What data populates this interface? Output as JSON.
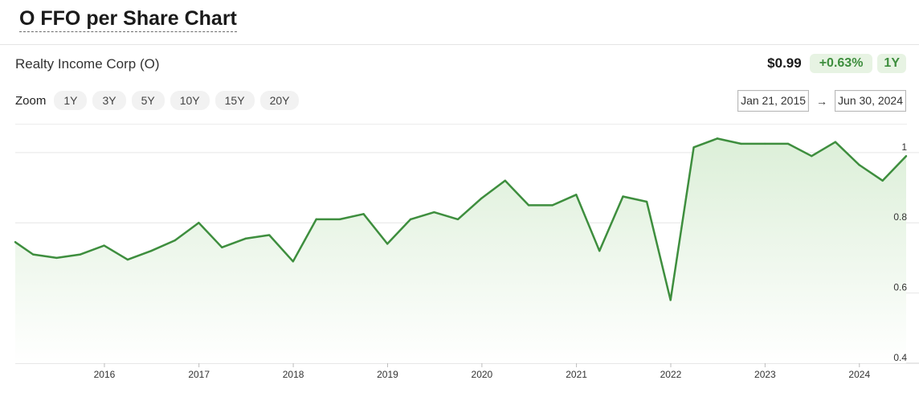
{
  "header": {
    "title": "O FFO per Share Chart"
  },
  "company": "Realty Income Corp (O)",
  "quote": {
    "price": "$0.99",
    "change": "+0.63%",
    "range": "1Y"
  },
  "zoom": {
    "label": "Zoom",
    "options": [
      "1Y",
      "3Y",
      "5Y",
      "10Y",
      "15Y",
      "20Y"
    ]
  },
  "date_range": {
    "start": "Jan 21, 2015",
    "arrow": "→",
    "end": "Jun 30, 2024"
  },
  "colors": {
    "accent": "#3e8e3e",
    "badge_bg": "#e7f3e3",
    "area_top": "#dcefd8"
  },
  "chart_data": {
    "type": "area",
    "title": "",
    "xlabel": "",
    "ylabel": "",
    "xlim": [
      "2015-01-21",
      "2024-06-30"
    ],
    "ylim": [
      0.4,
      1.05
    ],
    "y_ticks": [
      0.4,
      0.6,
      0.8,
      1
    ],
    "y_tick_labels": [
      "0.4",
      "0.6",
      "0.8",
      "1"
    ],
    "x_ticks": [
      "2016-01-01",
      "2017-01-01",
      "2018-01-01",
      "2019-01-01",
      "2020-01-01",
      "2021-01-01",
      "2022-01-01",
      "2023-01-01",
      "2024-01-01"
    ],
    "x_tick_labels": [
      "2016",
      "2017",
      "2018",
      "2019",
      "2020",
      "2021",
      "2022",
      "2023",
      "2024"
    ],
    "grid": true,
    "series": [
      {
        "x": [
          "2015-01-21",
          "2015-03-31",
          "2015-06-30",
          "2015-09-30",
          "2015-12-31",
          "2016-03-31",
          "2016-06-30",
          "2016-09-30",
          "2016-12-31",
          "2017-03-31",
          "2017-06-30",
          "2017-09-30",
          "2017-12-31",
          "2018-03-31",
          "2018-06-30",
          "2018-09-30",
          "2018-12-31",
          "2019-03-31",
          "2019-06-30",
          "2019-09-30",
          "2019-12-31",
          "2020-03-31",
          "2020-06-30",
          "2020-09-30",
          "2020-12-31",
          "2021-03-31",
          "2021-06-30",
          "2021-09-30",
          "2021-12-31",
          "2022-03-31",
          "2022-06-30",
          "2022-09-30",
          "2022-12-31",
          "2023-03-31",
          "2023-06-30",
          "2023-09-30",
          "2023-12-31",
          "2024-03-31",
          "2024-06-30"
        ],
        "values": [
          0.745,
          0.71,
          0.7,
          0.71,
          0.735,
          0.695,
          0.72,
          0.75,
          0.8,
          0.73,
          0.755,
          0.765,
          0.69,
          0.81,
          0.81,
          0.825,
          0.74,
          0.81,
          0.83,
          0.81,
          0.87,
          0.92,
          0.85,
          0.85,
          0.88,
          0.72,
          0.875,
          0.86,
          0.58,
          1.015,
          1.04,
          1.025,
          1.025,
          1.025,
          0.99,
          1.03,
          0.965,
          0.92,
          0.99
        ]
      }
    ]
  }
}
